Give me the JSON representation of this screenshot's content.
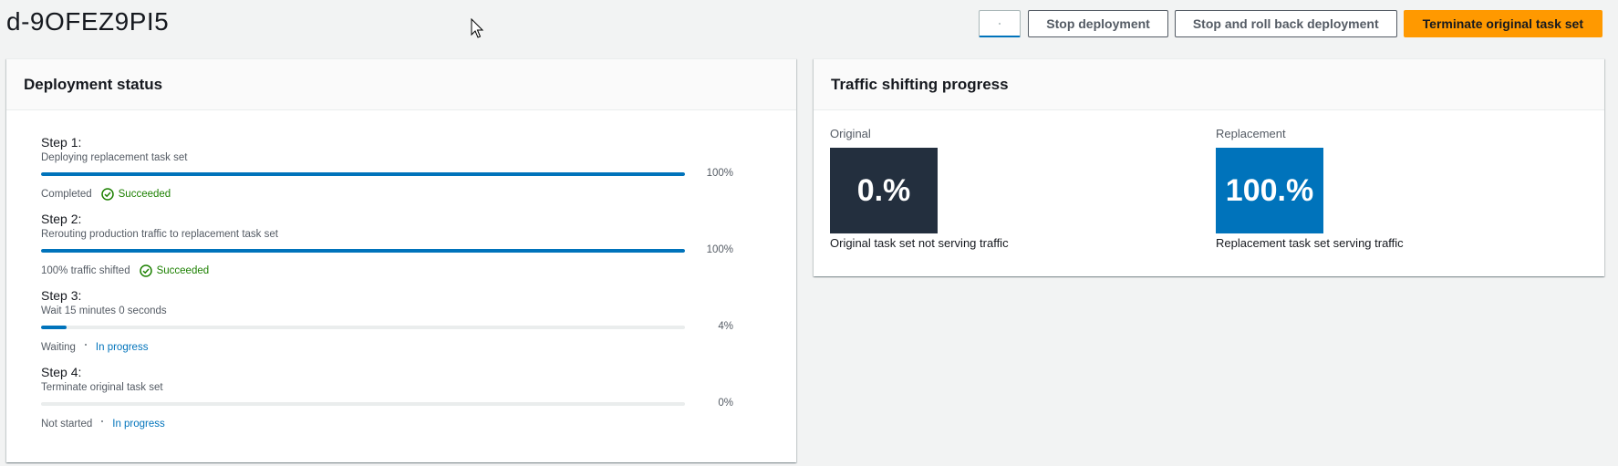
{
  "page": {
    "title": "d-9OFEZ9PI5"
  },
  "toolbar": {
    "stop_label": "Stop deployment",
    "rollback_label": "Stop and roll back deployment",
    "terminate_label": "Terminate original task set"
  },
  "deployment": {
    "header": "Deployment status",
    "steps": [
      {
        "title": "Step 1:",
        "description": "Deploying replacement task set",
        "progress": 100,
        "percent_label": "100%",
        "status_text": "Completed",
        "badge": "Succeeded",
        "badge_type": "success"
      },
      {
        "title": "Step 2:",
        "description": "Rerouting production traffic to replacement task set",
        "progress": 100,
        "percent_label": "100%",
        "status_text": "100% traffic shifted",
        "badge": "Succeeded",
        "badge_type": "success"
      },
      {
        "title": "Step 3:",
        "description": "Wait 15 minutes 0 seconds",
        "progress": 4,
        "percent_label": "4%",
        "status_text": "Waiting",
        "badge": "In progress",
        "badge_type": "in-progress"
      },
      {
        "title": "Step 4:",
        "description": "Terminate original task set",
        "progress": 0,
        "percent_label": "0%",
        "status_text": "Not started",
        "badge": "In progress",
        "badge_type": "in-progress"
      }
    ]
  },
  "traffic": {
    "header": "Traffic shifting progress",
    "original": {
      "label": "Original",
      "value": "0.%",
      "caption": "Original task set not serving traffic"
    },
    "replacement": {
      "label": "Replacement",
      "value": "100.%",
      "caption": "Replacement task set serving traffic"
    }
  },
  "colors": {
    "primary_button": "#ff9900",
    "progress_fill": "#0073bb",
    "success": "#1d8102",
    "original_box": "#232f3e",
    "replacement_box": "#0073bb"
  },
  "icons": {
    "success": "check-circle-icon",
    "in_progress": "spinner-icon",
    "cursor": "mouse-pointer-icon"
  }
}
